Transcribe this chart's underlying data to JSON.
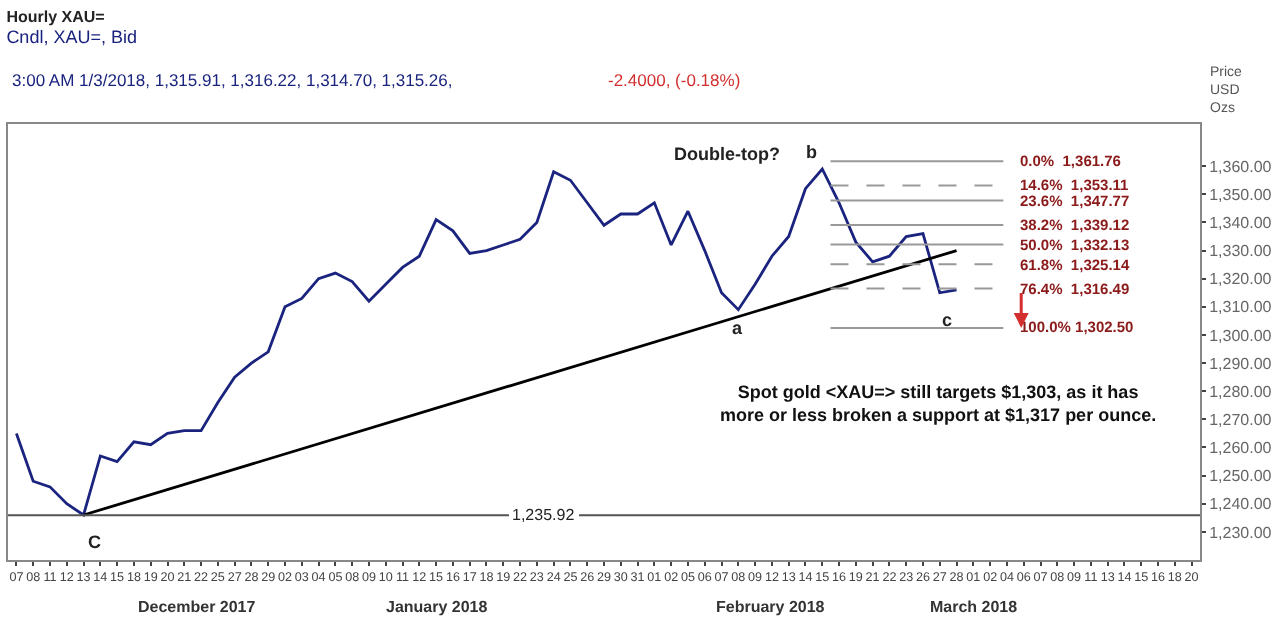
{
  "chart_data": {
    "type": "line",
    "title": "Hourly XAU=",
    "subtitle": "Cndl, XAU=, Bid",
    "ylabel": "Price\nUSD\nOzs",
    "categories": [
      "07",
      "08",
      "11",
      "12",
      "13",
      "14",
      "15",
      "18",
      "19",
      "20",
      "21",
      "22",
      "25",
      "27",
      "28",
      "29",
      "02",
      "03",
      "04",
      "05",
      "08",
      "09",
      "10",
      "11",
      "12",
      "15",
      "16",
      "17",
      "18",
      "19",
      "22",
      "23",
      "24",
      "25",
      "26",
      "29",
      "30",
      "31",
      "01",
      "02",
      "05",
      "06",
      "07",
      "08",
      "09",
      "12",
      "13",
      "14",
      "15",
      "16",
      "19",
      "21",
      "22",
      "23",
      "26",
      "27",
      "28",
      "01",
      "02",
      "04",
      "06",
      "07",
      "08",
      "09",
      "11",
      "13",
      "14",
      "15",
      "16",
      "18",
      "20"
    ],
    "series": [
      {
        "color": "#1a237e",
        "values": [
          1265,
          1248,
          1246,
          1240,
          1236,
          1257,
          1255,
          1262,
          1261,
          1265,
          1266,
          1266,
          1276,
          1285,
          1290,
          1294,
          1310,
          1313,
          1320,
          1322,
          1319,
          1312,
          1318,
          1324,
          1328,
          1341,
          1337,
          1329,
          1330,
          1332,
          1334,
          1340,
          1358,
          1355,
          1347,
          1339,
          1343,
          1343,
          1347,
          1332,
          1344,
          1330,
          1315,
          1309,
          1318,
          1328,
          1335,
          1352,
          1359,
          1347,
          1333,
          1326,
          1328,
          1335,
          1336,
          1315,
          1316,
          null,
          null,
          null,
          null,
          null,
          null,
          null,
          null,
          null,
          null,
          null,
          null,
          null,
          null
        ]
      },
      {
        "color": "#000000",
        "values": [
          null,
          null,
          null,
          null,
          1236,
          null,
          null,
          null,
          null,
          null,
          null,
          null,
          null,
          null,
          null,
          null,
          null,
          null,
          null,
          null,
          null,
          null,
          null,
          null,
          null,
          null,
          null,
          null,
          null,
          null,
          null,
          null,
          null,
          null,
          null,
          null,
          null,
          null,
          null,
          null,
          null,
          null,
          null,
          null,
          null,
          null,
          null,
          null,
          null,
          null,
          null,
          null,
          null,
          null,
          null,
          null,
          1330,
          null,
          null,
          null,
          null,
          null,
          null,
          null,
          null,
          null,
          null,
          null,
          null,
          null,
          null
        ]
      }
    ],
    "ylim": [
      1220,
      1375
    ],
    "yticks": [
      {
        "value": 1230,
        "label": "1,230.00"
      },
      {
        "value": 1240,
        "label": "1,240.00"
      },
      {
        "value": 1250,
        "label": "1,250.00"
      },
      {
        "value": 1260,
        "label": "1,260.00"
      },
      {
        "value": 1270,
        "label": "1,270.00"
      },
      {
        "value": 1280,
        "label": "1,280.00"
      },
      {
        "value": 1290,
        "label": "1,290.00"
      },
      {
        "value": 1300,
        "label": "1,300.00"
      },
      {
        "value": 1310,
        "label": "1,310.00"
      },
      {
        "value": 1320,
        "label": "1,320.00"
      },
      {
        "value": 1330,
        "label": "1,330.00"
      },
      {
        "value": 1340,
        "label": "1,340.00"
      },
      {
        "value": 1350,
        "label": "1,350.00"
      },
      {
        "value": 1360,
        "label": "1,360.00"
      }
    ],
    "ref_lines": [
      {
        "axis": "y",
        "value": 1235.92,
        "label": "1,235.92",
        "color": "#555555",
        "line_style": "solid"
      },
      {
        "axis": "y",
        "value": 1361.76,
        "label": "0.0%  1,361.76",
        "color": "#999999",
        "line_style": "solid"
      },
      {
        "axis": "y",
        "value": 1353.11,
        "label": "14.6%  1,353.11",
        "color": "#999999",
        "line_style": "dashed"
      },
      {
        "axis": "y",
        "value": 1347.77,
        "label": "23.6%  1,347.77",
        "color": "#999999",
        "line_style": "solid"
      },
      {
        "axis": "y",
        "value": 1339.12,
        "label": "38.2%  1,339.12",
        "color": "#999999",
        "line_style": "solid"
      },
      {
        "axis": "y",
        "value": 1332.13,
        "label": "50.0%  1,332.13",
        "color": "#999999",
        "line_style": "solid"
      },
      {
        "axis": "y",
        "value": 1325.14,
        "label": "61.8%  1,325.14",
        "color": "#999999",
        "line_style": "dashed"
      },
      {
        "axis": "y",
        "value": 1316.49,
        "label": "76.4%  1,316.49",
        "color": "#999999",
        "line_style": "dashed"
      },
      {
        "axis": "y",
        "value": 1302.5,
        "label": "100.0% 1,302.50",
        "color": "#999999",
        "line_style": "solid"
      }
    ],
    "annotations": [
      "3:00 AM 1/3/2018, 1,315.91, 1,316.22, 1,314.70, 1,315.26,",
      "-2.4000, (-0.18%)",
      "Double-top?",
      "Spot gold <XAU=> still targets $1,303, as it has\nmore or less broken a support at $1,317 per ounce.",
      "December 2017",
      "January 2018",
      "February 2018",
      "March 2018",
      "a",
      "b",
      "c",
      "C"
    ],
    "marker": "none",
    "line_style": "solid"
  }
}
